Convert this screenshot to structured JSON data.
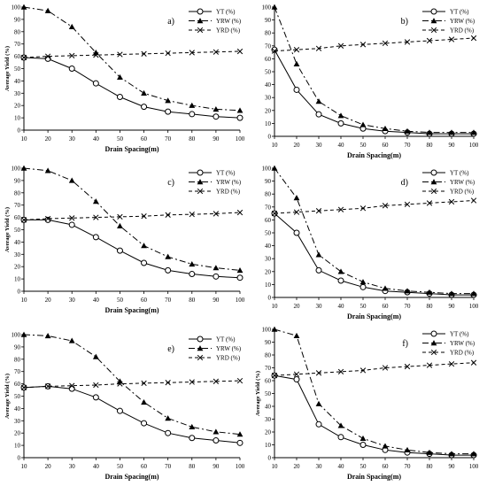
{
  "chart_data": [
    {
      "type": "line",
      "panel_label": "a)",
      "xlabel": "Drain Spacing(m)",
      "ylabel": "Average Yield (%)",
      "x": [
        10,
        20,
        30,
        40,
        50,
        60,
        70,
        80,
        90,
        100
      ],
      "xlim": [
        10,
        100
      ],
      "ylim": [
        0,
        100
      ],
      "yticks": [
        0,
        10,
        20,
        30,
        40,
        50,
        60,
        70,
        80,
        90,
        100
      ],
      "legend_position": "top-right",
      "series": [
        {
          "name": "YT (%)",
          "values": [
            59,
            58,
            50,
            38,
            27,
            19,
            15,
            13,
            11,
            10
          ]
        },
        {
          "name": "YRW (%)",
          "values": [
            100,
            97,
            84,
            63,
            43,
            30,
            24,
            20,
            17,
            16
          ]
        },
        {
          "name": "YRD (%)",
          "values": [
            59,
            60,
            60.5,
            61,
            61.5,
            62,
            62.5,
            63,
            63.5,
            64
          ]
        }
      ]
    },
    {
      "type": "line",
      "panel_label": "b)",
      "xlabel": "Drain Spacing(m)",
      "ylabel": "",
      "x": [
        10,
        20,
        30,
        40,
        50,
        60,
        70,
        80,
        90,
        100
      ],
      "xlim": [
        10,
        100
      ],
      "ylim": [
        0,
        100
      ],
      "yticks": [
        0,
        10,
        20,
        30,
        40,
        50,
        60,
        70,
        80,
        90,
        100
      ],
      "legend_position": "top-right",
      "series": [
        {
          "name": "YT (%)",
          "values": [
            67,
            36,
            17,
            10,
            6,
            4,
            3,
            2,
            2,
            2
          ]
        },
        {
          "name": "YRW (%)",
          "values": [
            100,
            56,
            27,
            16,
            9,
            6,
            4,
            3,
            3,
            3
          ]
        },
        {
          "name": "YRD (%)",
          "values": [
            66,
            67,
            68,
            70,
            71,
            72,
            73,
            74,
            75,
            76
          ]
        }
      ]
    },
    {
      "type": "line",
      "panel_label": "c)",
      "xlabel": "Drain Spacing(m)",
      "ylabel": "Average Yield (%)",
      "x": [
        10,
        20,
        30,
        40,
        50,
        60,
        70,
        80,
        90,
        100
      ],
      "xlim": [
        10,
        100
      ],
      "ylim": [
        0,
        100
      ],
      "yticks": [
        0,
        10,
        20,
        30,
        40,
        50,
        60,
        70,
        80,
        90,
        100
      ],
      "legend_position": "top-right",
      "series": [
        {
          "name": "YT (%)",
          "values": [
            58,
            58,
            54,
            44,
            33,
            23,
            17,
            14,
            12,
            11
          ]
        },
        {
          "name": "YRW (%)",
          "values": [
            100,
            98,
            90,
            73,
            53,
            37,
            28,
            22,
            19,
            17
          ]
        },
        {
          "name": "YRD (%)",
          "values": [
            58,
            59,
            59.5,
            60,
            60.5,
            61,
            62,
            62.5,
            63,
            64
          ]
        }
      ]
    },
    {
      "type": "line",
      "panel_label": "d)",
      "xlabel": "Drain Spacing(m)",
      "ylabel": "",
      "x": [
        10,
        20,
        30,
        40,
        50,
        60,
        70,
        80,
        90,
        100
      ],
      "xlim": [
        10,
        100
      ],
      "ylim": [
        0,
        100
      ],
      "yticks": [
        0,
        10,
        20,
        30,
        40,
        50,
        60,
        70,
        80,
        90,
        100
      ],
      "legend_position": "top-right",
      "series": [
        {
          "name": "YT (%)",
          "values": [
            65,
            50,
            21,
            13,
            8,
            5,
            4,
            3,
            2,
            2
          ]
        },
        {
          "name": "YRW (%)",
          "values": [
            100,
            77,
            33,
            20,
            12,
            7,
            5,
            4,
            3,
            3
          ]
        },
        {
          "name": "YRD (%)",
          "values": [
            65,
            66,
            67,
            68,
            69,
            71,
            72,
            73,
            74,
            75
          ]
        }
      ]
    },
    {
      "type": "line",
      "panel_label": "e)",
      "xlabel": "Drain Spacing(m)",
      "ylabel": "Average Yield (%)",
      "x": [
        10,
        20,
        30,
        40,
        50,
        60,
        70,
        80,
        90,
        100
      ],
      "xlim": [
        10,
        100
      ],
      "ylim": [
        0,
        100
      ],
      "yticks": [
        0,
        10,
        20,
        30,
        40,
        50,
        60,
        70,
        80,
        90,
        100
      ],
      "legend_position": "top-right",
      "series": [
        {
          "name": "YT (%)",
          "values": [
            57,
            58,
            56,
            49,
            38,
            28,
            20,
            16,
            14,
            12
          ]
        },
        {
          "name": "YRW (%)",
          "values": [
            100,
            99,
            95,
            82,
            62,
            45,
            32,
            25,
            21,
            19
          ]
        },
        {
          "name": "YRD (%)",
          "values": [
            57,
            58,
            58.5,
            59,
            60,
            60.5,
            61,
            61.5,
            62,
            62.5
          ]
        }
      ]
    },
    {
      "type": "line",
      "panel_label": "f)",
      "xlabel": "Drain Spacing(m)",
      "ylabel": "Average Yield (%)",
      "x": [
        10,
        20,
        30,
        40,
        50,
        60,
        70,
        80,
        90,
        100
      ],
      "xlim": [
        10,
        100
      ],
      "ylim": [
        0,
        100
      ],
      "yticks": [
        0,
        10,
        20,
        30,
        40,
        50,
        60,
        70,
        80,
        90,
        100
      ],
      "legend_position": "top-right",
      "series": [
        {
          "name": "YT (%)",
          "values": [
            64,
            61,
            26,
            16,
            10,
            6,
            4,
            3,
            2,
            2
          ]
        },
        {
          "name": "YRW (%)",
          "values": [
            100,
            95,
            42,
            25,
            15,
            9,
            6,
            4,
            3,
            3
          ]
        },
        {
          "name": "YRD (%)",
          "values": [
            64,
            65,
            66,
            67,
            68,
            70,
            71,
            72,
            73,
            74
          ]
        }
      ]
    }
  ],
  "style": {
    "line_color": "#000000",
    "grid": false,
    "markers": [
      "open-circle",
      "filled-triangle",
      "x-cross"
    ],
    "line_styles": [
      "solid",
      "dash-dot",
      "dashed"
    ]
  }
}
